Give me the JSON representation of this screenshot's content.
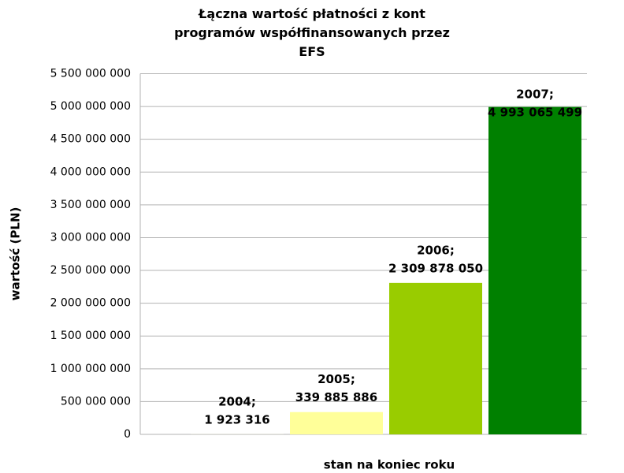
{
  "chart_data": {
    "type": "bar",
    "title": "Łączna wartość płatności z kont programów współfinansowanych przez EFS",
    "xlabel": "stan na koniec roku",
    "ylabel": "wartość (PLN)",
    "categories": [
      "2004;",
      "2005;",
      "2006;",
      "2007;"
    ],
    "values": [
      1923316,
      339885886,
      2309878050,
      4993065499
    ],
    "value_labels": [
      "1 923 316",
      "339 885 886",
      "2 309 878 050",
      "4 993 065 499"
    ],
    "colors": [
      "#ffffcc",
      "#ffff99",
      "#99cc00",
      "#008000"
    ],
    "ylim": [
      0,
      5500000000
    ],
    "yticks": [
      0,
      {
        "value": 500000000,
        "label": "500 000 000"
      },
      {
        "value": 1000000000,
        "label": "1 000 000 000"
      },
      {
        "value": 1500000000,
        "label": "1 500 000 000"
      },
      {
        "value": 2000000000,
        "label": "2 000 000 000"
      },
      {
        "value": 2500000000,
        "label": "2 500 000 000"
      },
      {
        "value": 3000000000,
        "label": "3 000 000 000"
      },
      {
        "value": 3500000000,
        "label": "3 500 000 000"
      },
      {
        "value": 4000000000,
        "label": "4 000 000 000"
      },
      {
        "value": 4500000000,
        "label": "4 500 000 000"
      },
      {
        "value": 5000000000,
        "label": "5 000 000 000"
      },
      {
        "value": 5500000000,
        "label": "5 500 000 000"
      }
    ],
    "grid": true
  }
}
